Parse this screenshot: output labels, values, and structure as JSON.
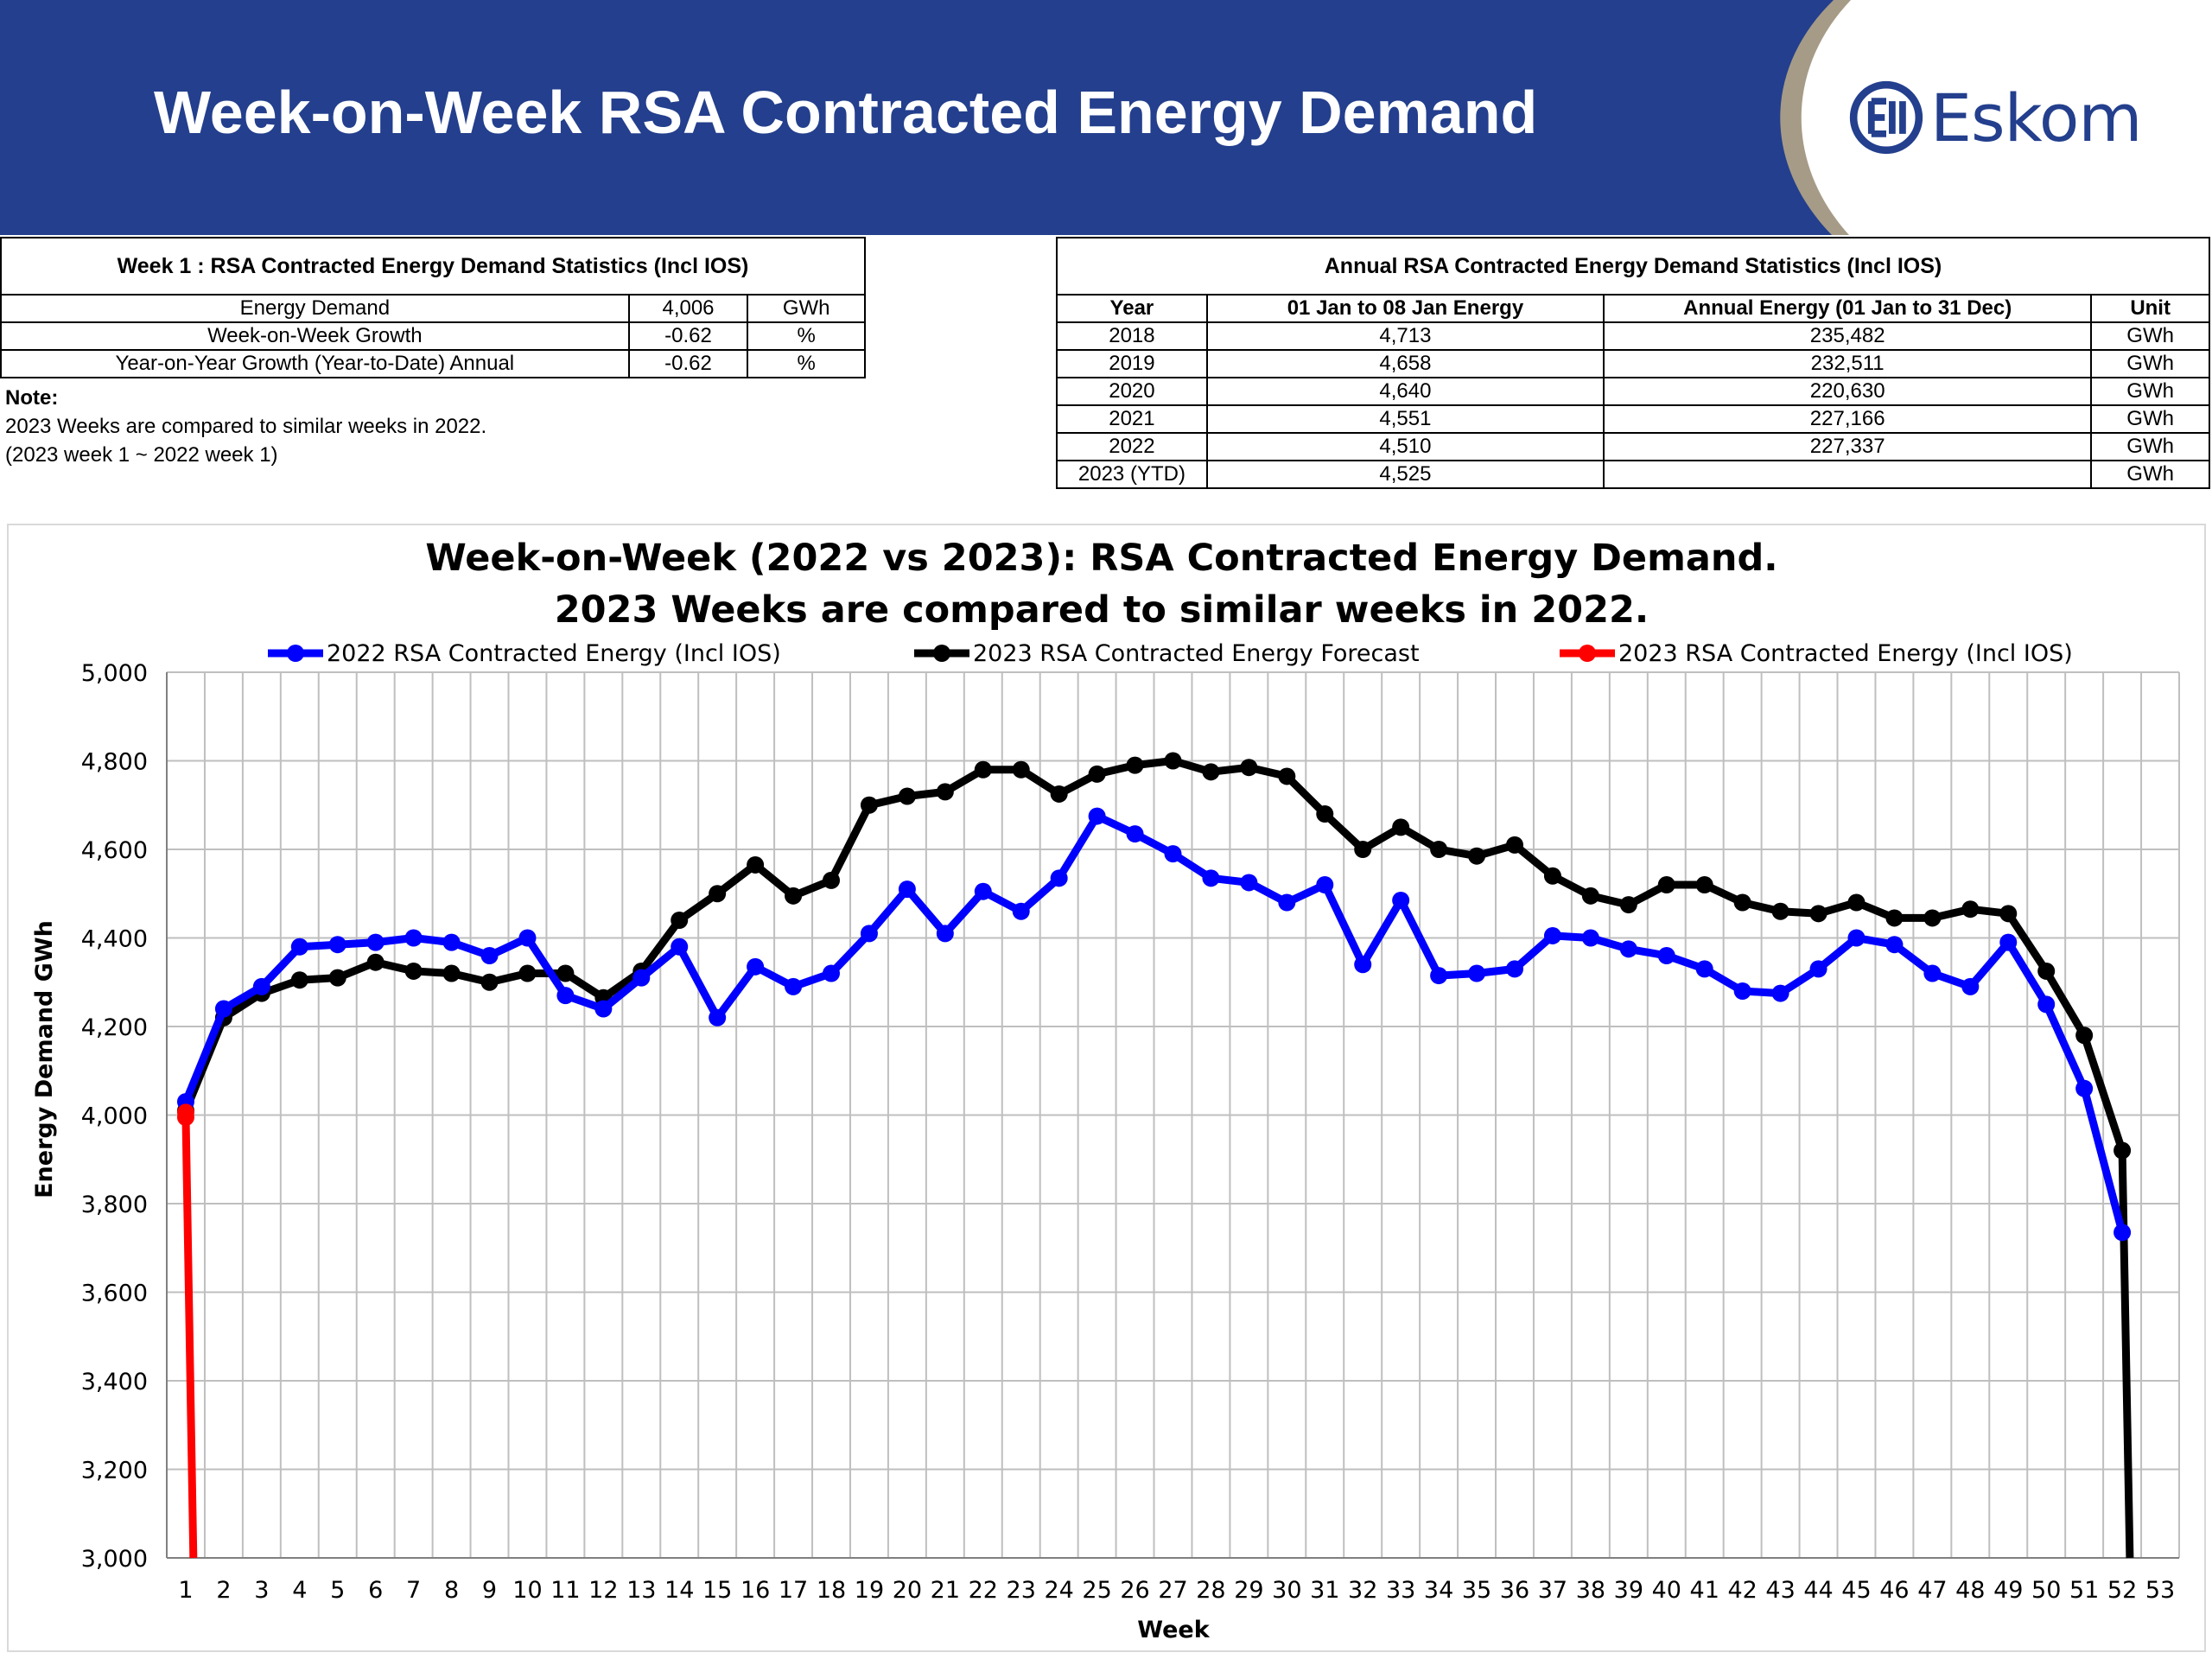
{
  "header": {
    "title": "Week-on-Week RSA Contracted Energy Demand",
    "logo_text": "Eskom",
    "logo_mark": "eskom-logo-icon",
    "colors": {
      "banner": "#233f8d",
      "swoosh": "#a69b87"
    }
  },
  "week_stats": {
    "caption": "Week 1 : RSA Contracted Energy Demand Statistics (Incl IOS)",
    "rows": [
      {
        "label": "Energy Demand",
        "value": "4,006",
        "unit": "GWh"
      },
      {
        "label": "Week-on-Week Growth",
        "value": "-0.62",
        "unit": "%"
      },
      {
        "label": "Year-on-Year Growth (Year-to-Date) Annual",
        "value": "-0.62",
        "unit": "%"
      }
    ]
  },
  "note": {
    "title": "Note:",
    "line1": "2023 Weeks are compared to similar weeks in 2022.",
    "line2": "(2023 week 1 ~ 2022 week 1)"
  },
  "annual_stats": {
    "caption": "Annual RSA Contracted Energy Demand Statistics (Incl IOS)",
    "headers": [
      "Year",
      "01 Jan to 08 Jan Energy",
      "Annual Energy (01 Jan to 31 Dec)",
      "Unit"
    ],
    "rows": [
      [
        "2018",
        "4,713",
        "235,482",
        "GWh"
      ],
      [
        "2019",
        "4,658",
        "232,511",
        "GWh"
      ],
      [
        "2020",
        "4,640",
        "220,630",
        "GWh"
      ],
      [
        "2021",
        "4,551",
        "227,166",
        "GWh"
      ],
      [
        "2022",
        "4,510",
        "227,337",
        "GWh"
      ],
      [
        "2023 (YTD)",
        "4,525",
        "",
        "GWh"
      ]
    ]
  },
  "chart_data": {
    "type": "line",
    "title": "Week-on-Week (2022 vs 2023): RSA Contracted Energy Demand.",
    "subtitle": "2023 Weeks are compared to similar weeks in 2022.",
    "xlabel": "Week",
    "ylabel": "Energy Demand GWh",
    "xlim": [
      1,
      53
    ],
    "ylim": [
      3000,
      5000
    ],
    "ytick_step": 200,
    "grid": true,
    "legend_position": "top",
    "series": [
      {
        "name": "2022 RSA Contracted Energy (Incl IOS)",
        "color": "#0000ff",
        "x": [
          1,
          2,
          3,
          4,
          5,
          6,
          7,
          8,
          9,
          10,
          11,
          12,
          13,
          14,
          15,
          16,
          17,
          18,
          19,
          20,
          21,
          22,
          23,
          24,
          25,
          26,
          27,
          28,
          29,
          30,
          31,
          32,
          33,
          34,
          35,
          36,
          37,
          38,
          39,
          40,
          41,
          42,
          43,
          44,
          45,
          46,
          47,
          48,
          49,
          50,
          51,
          52
        ],
        "values": [
          4030,
          4240,
          4290,
          4380,
          4385,
          4390,
          4400,
          4390,
          4360,
          4400,
          4270,
          4240,
          4310,
          4380,
          4220,
          4335,
          4290,
          4320,
          4410,
          4510,
          4410,
          4505,
          4460,
          4535,
          4675,
          4635,
          4590,
          4535,
          4525,
          4480,
          4520,
          4340,
          4485,
          4315,
          4320,
          4330,
          4405,
          4400,
          4375,
          4360,
          4330,
          4280,
          4275,
          4330,
          4400,
          4385,
          4320,
          4290,
          4390,
          4250,
          4060,
          3735
        ]
      },
      {
        "name": "2023 RSA Contracted Energy Forecast",
        "color": "#000000",
        "x": [
          1,
          2,
          3,
          4,
          5,
          6,
          7,
          8,
          9,
          10,
          11,
          12,
          13,
          14,
          15,
          16,
          17,
          18,
          19,
          20,
          21,
          22,
          23,
          24,
          25,
          26,
          27,
          28,
          29,
          30,
          31,
          32,
          33,
          34,
          35,
          36,
          37,
          38,
          39,
          40,
          41,
          42,
          43,
          44,
          45,
          46,
          47,
          48,
          49,
          50,
          51,
          52,
          52.2
        ],
        "values": [
          4010,
          4220,
          4275,
          4305,
          4310,
          4345,
          4325,
          4320,
          4300,
          4320,
          4320,
          4265,
          4325,
          4440,
          4500,
          4565,
          4495,
          4530,
          4700,
          4720,
          4730,
          4780,
          4780,
          4725,
          4770,
          4790,
          4800,
          4775,
          4785,
          4765,
          4680,
          4600,
          4650,
          4600,
          4585,
          4610,
          4540,
          4495,
          4475,
          4520,
          4520,
          4480,
          4460,
          4455,
          4480,
          4445,
          4445,
          4465,
          4455,
          4325,
          4180,
          3920,
          3000
        ]
      },
      {
        "name": "2023 RSA Contracted Energy (Incl IOS)",
        "color": "#ff0000",
        "x": [
          1,
          1,
          1.2
        ],
        "values": [
          4006,
          3995,
          3000
        ]
      }
    ]
  }
}
